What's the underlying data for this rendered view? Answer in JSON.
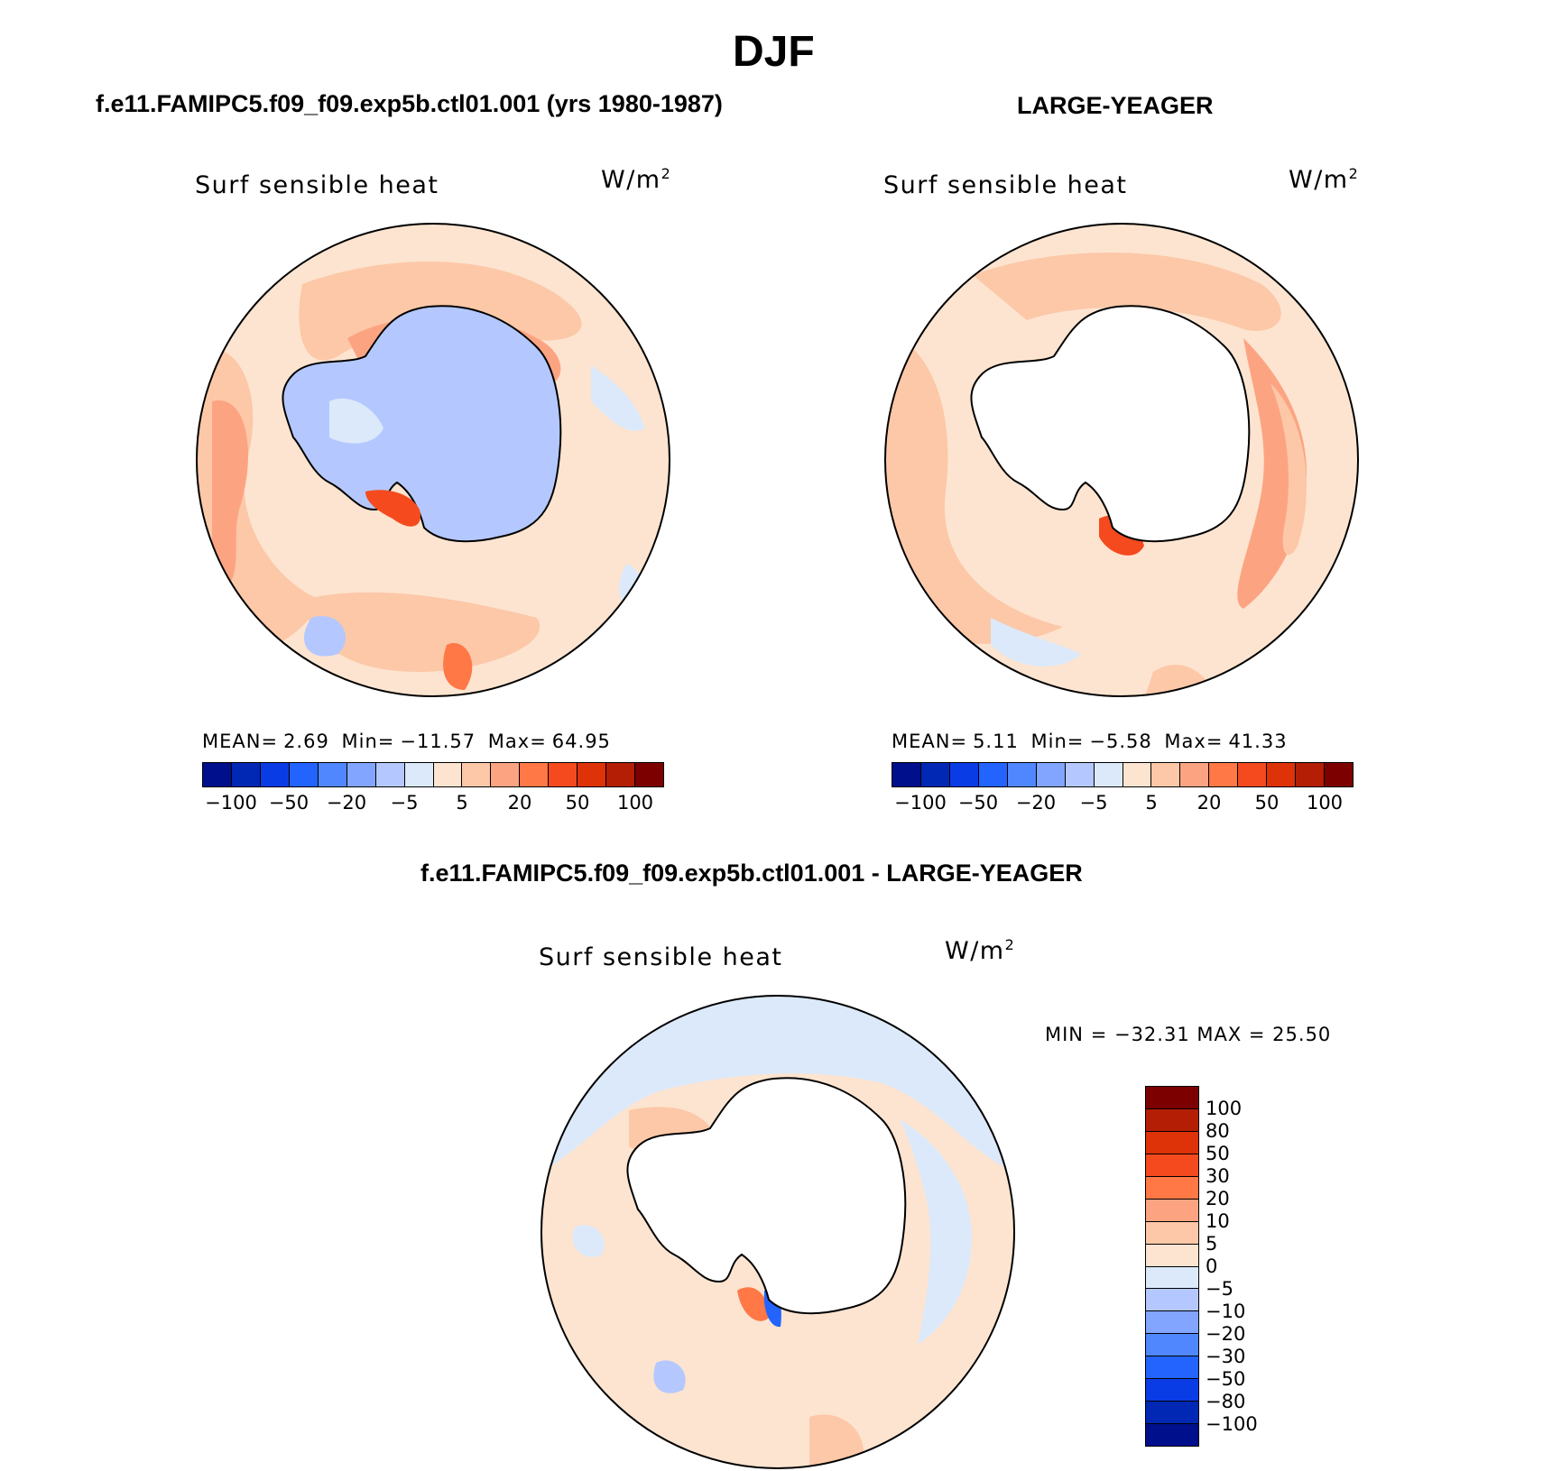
{
  "page": {
    "title": "DJF",
    "left_title": "f.e11.FAMIPC5.f09_f09.exp5b.ctl01.001 (yrs 1980-1987)",
    "right_title": "LARGE-YEAGER",
    "diff_title": "f.e11.FAMIPC5.f09_f09.exp5b.ctl01.001 - LARGE-YEAGER"
  },
  "panels": {
    "left": {
      "variable": "Surf  sensible  heat",
      "units": "W/m",
      "units_sup": "2",
      "mean_label": "MEAN=",
      "mean_value": "2.69",
      "min_label": "Min=",
      "min_value": "−11.57",
      "max_label": "Max=",
      "max_value": "64.95"
    },
    "right": {
      "variable": "Surf  sensible  heat",
      "units": "W/m",
      "units_sup": "2",
      "mean_label": "MEAN=",
      "mean_value": "5.11",
      "min_label": "Min=",
      "min_value": "−5.58",
      "max_label": "Max=",
      "max_value": "41.33"
    },
    "diff": {
      "variable": "Surf  sensible  heat",
      "units": "W/m",
      "units_sup": "2",
      "minmax_text": "MIN = −32.31  MAX =   25.50"
    }
  },
  "colorbar_top": {
    "colors": [
      "#000f8c",
      "#0028b4",
      "#0a3ce6",
      "#2364ff",
      "#5087ff",
      "#82a5ff",
      "#b4c8ff",
      "#dce9fa",
      "#fde4d0",
      "#fcc8a8",
      "#fca482",
      "#ff7845",
      "#f44a1e",
      "#de3208",
      "#b41e05",
      "#7d0000"
    ],
    "tick_labels": [
      "−100",
      "−50",
      "−20",
      "−5",
      "5",
      "20",
      "50",
      "100"
    ]
  },
  "colorbar_diff": {
    "colors_top_to_bottom": [
      "#7d0000",
      "#b41e05",
      "#de3208",
      "#f44a1e",
      "#ff7845",
      "#fca482",
      "#fcc8a8",
      "#fde4d0",
      "#dce9fa",
      "#b4c8ff",
      "#82a5ff",
      "#5087ff",
      "#2364ff",
      "#0a3ce6",
      "#0028b4",
      "#000f8c"
    ],
    "tick_labels": [
      "100",
      "80",
      "50",
      "30",
      "20",
      "10",
      "5",
      "0",
      "−5",
      "−10",
      "−20",
      "−30",
      "−50",
      "−80",
      "−100"
    ]
  },
  "map_colors": {
    "ocean_warm_light": "#fde4d0",
    "ocean_warm_mid": "#fcc8a8",
    "ocean_warm_strong": "#fca482",
    "hot": "#f44a1e",
    "cool_light": "#dce9fa",
    "cool_mid": "#b4c8ff",
    "land_blank": "#ffffff"
  }
}
